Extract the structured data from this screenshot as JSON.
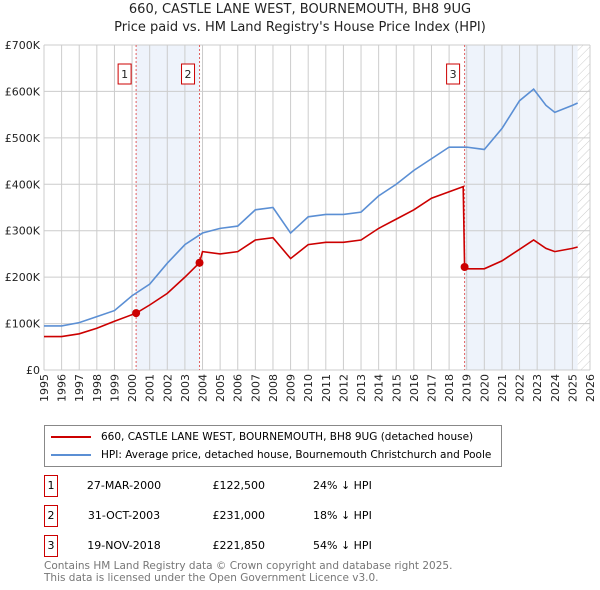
{
  "title": "660, CASTLE LANE WEST, BOURNEMOUTH, BH8 9UG",
  "subtitle": "Price paid vs. HM Land Registry's House Price Index (HPI)",
  "chart_data": {
    "type": "line",
    "xlim": [
      1995,
      2026
    ],
    "ylim": [
      0,
      700000
    ],
    "x_ticks": [
      "1995",
      "1996",
      "1997",
      "1998",
      "1999",
      "2000",
      "2001",
      "2002",
      "2003",
      "2004",
      "2005",
      "2006",
      "2007",
      "2008",
      "2009",
      "2010",
      "2011",
      "2012",
      "2013",
      "2014",
      "2015",
      "2016",
      "2017",
      "2018",
      "2019",
      "2020",
      "2021",
      "2022",
      "2023",
      "2024",
      "2025",
      "2026"
    ],
    "y_ticks": [
      {
        "v": 0,
        "label": "£0"
      },
      {
        "v": 100000,
        "label": "£100K"
      },
      {
        "v": 200000,
        "label": "£200K"
      },
      {
        "v": 300000,
        "label": "£300K"
      },
      {
        "v": 400000,
        "label": "£400K"
      },
      {
        "v": 500000,
        "label": "£500K"
      },
      {
        "v": 600000,
        "label": "£600K"
      },
      {
        "v": 700000,
        "label": "£700K"
      }
    ],
    "grid": true,
    "series": [
      {
        "name": "660, CASTLE LANE WEST, BOURNEMOUTH, BH8 9UG (detached house)",
        "color": "#cc0000",
        "x": [
          1995,
          1996,
          1997,
          1998,
          1999,
          2000.23,
          2001,
          2002,
          2003,
          2003.83,
          2004,
          2005,
          2006,
          2007,
          2008,
          2009,
          2010,
          2011,
          2012,
          2013,
          2014,
          2015,
          2016,
          2017,
          2018.8,
          2018.88,
          2019,
          2020,
          2021,
          2022,
          2022.8,
          2023.5,
          2024,
          2025,
          2025.3
        ],
        "y": [
          72000,
          72000,
          78000,
          90000,
          105000,
          122500,
          140000,
          165000,
          200000,
          231000,
          255000,
          250000,
          255000,
          280000,
          285000,
          240000,
          270000,
          275000,
          275000,
          280000,
          305000,
          325000,
          345000,
          370000,
          395000,
          221850,
          218000,
          218000,
          235000,
          260000,
          280000,
          262000,
          255000,
          262000,
          265000
        ]
      },
      {
        "name": "HPI: Average price, detached house, Bournemouth Christchurch and Poole",
        "color": "#5b8fd4",
        "x": [
          1995,
          1996,
          1997,
          1998,
          1999,
          2000,
          2001,
          2002,
          2003,
          2004,
          2005,
          2006,
          2007,
          2008,
          2009,
          2010,
          2011,
          2012,
          2013,
          2014,
          2015,
          2016,
          2017,
          2018,
          2019,
          2020,
          2021,
          2022,
          2022.8,
          2023.5,
          2024,
          2025,
          2025.3
        ],
        "y": [
          95000,
          95000,
          102000,
          115000,
          128000,
          160000,
          185000,
          230000,
          270000,
          295000,
          305000,
          310000,
          345000,
          350000,
          295000,
          330000,
          335000,
          335000,
          340000,
          375000,
          400000,
          430000,
          455000,
          480000,
          480000,
          475000,
          520000,
          580000,
          605000,
          570000,
          555000,
          570000,
          575000
        ]
      }
    ],
    "sales": [
      {
        "n": "1",
        "x": 2000.23,
        "y": 122500,
        "date": "27-MAR-2000",
        "price": "£122,500",
        "diff": "24% ↓ HPI"
      },
      {
        "n": "2",
        "x": 2003.83,
        "y": 231000,
        "date": "31-OCT-2003",
        "price": "£231,000",
        "diff": "18% ↓ HPI"
      },
      {
        "n": "3",
        "x": 2018.88,
        "y": 221850,
        "date": "19-NOV-2018",
        "price": "£221,850",
        "diff": "54% ↓ HPI"
      }
    ],
    "shaded": [
      [
        2000.23,
        2003.83
      ],
      [
        2018.88,
        2025.3
      ]
    ],
    "hatched_from": 2025.3
  },
  "footer": [
    "Contains HM Land Registry data © Crown copyright and database right 2025.",
    "This data is licensed under the Open Government Licence v3.0."
  ]
}
